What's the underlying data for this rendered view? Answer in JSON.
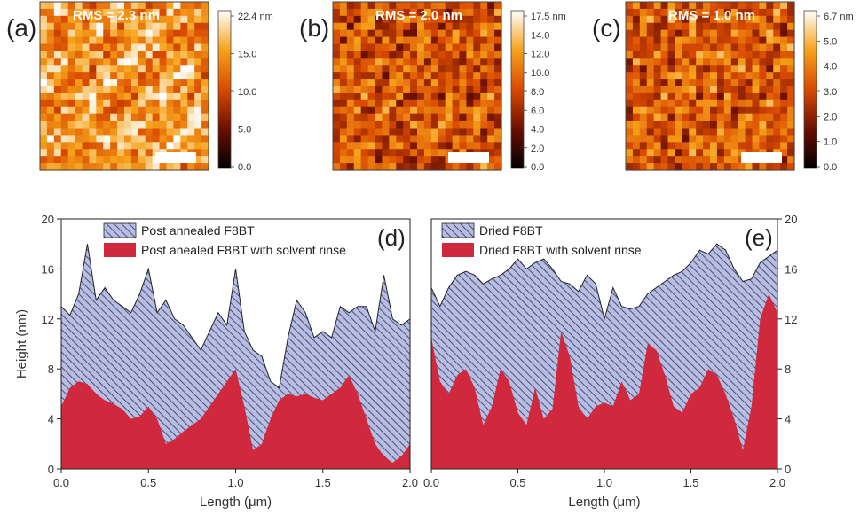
{
  "afm_panels": [
    {
      "panel_label": "(a)",
      "rms_label": "RMS = 2.3 nm",
      "colorbar_ticks": [
        "22.4 nm",
        "15.0",
        "10.0",
        "5.0",
        "0.0"
      ],
      "mean_brightness": 0.72
    },
    {
      "panel_label": "(b)",
      "rms_label": "RMS = 2.0 nm",
      "colorbar_ticks": [
        "17.5 nm",
        "14.0",
        "12.0",
        "10.0",
        "8.0",
        "6.0",
        "4.0",
        "2.0",
        "0.0"
      ],
      "mean_brightness": 0.52
    },
    {
      "panel_label": "(c)",
      "rms_label": "RMS = 1.0 nm",
      "colorbar_ticks": [
        "6.7 nm",
        "5.0",
        "4.0",
        "3.0",
        "2.0",
        "1.0",
        "0.0"
      ],
      "mean_brightness": 0.55
    }
  ],
  "colors": {
    "hatch_fill": "#b8bde2",
    "hatch_line": "#2e3362",
    "red_fill": "#d0283c",
    "outline": "#222222"
  },
  "chart_data": [
    {
      "type": "area",
      "panel_label": "(d)",
      "xlabel": "Length (μm)",
      "ylabel": "Height (nm)",
      "xlim": [
        0,
        2
      ],
      "ylim": [
        0,
        20
      ],
      "xticks": [
        "0.0",
        "0.5",
        "1.0",
        "1.5",
        "2.0"
      ],
      "yticks": [
        "0",
        "4",
        "8",
        "12",
        "16",
        "20"
      ],
      "legend_position": "top",
      "x": [
        0,
        0.05,
        0.1,
        0.15,
        0.2,
        0.25,
        0.3,
        0.35,
        0.4,
        0.45,
        0.5,
        0.55,
        0.6,
        0.65,
        0.7,
        0.75,
        0.8,
        0.85,
        0.9,
        0.95,
        1.0,
        1.05,
        1.1,
        1.15,
        1.2,
        1.25,
        1.3,
        1.35,
        1.4,
        1.45,
        1.5,
        1.55,
        1.6,
        1.65,
        1.7,
        1.75,
        1.8,
        1.85,
        1.9,
        1.95,
        2.0
      ],
      "series": [
        {
          "name": "Post annealed F8BT",
          "values": [
            13,
            12.3,
            14,
            18,
            13.5,
            14.5,
            13.5,
            13,
            12.5,
            14,
            16,
            12.5,
            13.5,
            12,
            11.5,
            10.5,
            9.5,
            11,
            12.5,
            11.5,
            16,
            11,
            9.5,
            9,
            7,
            6.5,
            10.5,
            13.5,
            12.5,
            10.5,
            11,
            10.5,
            13,
            12.5,
            13,
            13,
            11,
            15.5,
            12,
            11.5,
            12
          ]
        },
        {
          "name": "Post anealed F8BT with solvent rinse",
          "values": [
            5,
            6.5,
            7,
            6.8,
            6,
            5.5,
            5.2,
            4.8,
            4,
            4.2,
            5,
            4,
            2,
            2.4,
            3,
            3.5,
            4,
            5,
            6,
            7,
            8,
            5,
            1.5,
            2,
            4,
            5.5,
            6,
            5.8,
            6,
            5.7,
            5.5,
            6,
            6.5,
            7.5,
            6,
            4,
            2,
            1,
            0.5,
            1,
            2
          ]
        }
      ]
    },
    {
      "type": "area",
      "panel_label": "(e)",
      "xlabel": "Length (μm)",
      "ylabel": "",
      "xlim": [
        0,
        2
      ],
      "ylim": [
        0,
        20
      ],
      "xticks": [
        "0.0",
        "0.5",
        "1.0",
        "1.5",
        "2.0"
      ],
      "yticks": [
        "0",
        "4",
        "8",
        "12",
        "16",
        "20"
      ],
      "legend_position": "top",
      "x": [
        0,
        0.05,
        0.1,
        0.15,
        0.2,
        0.25,
        0.3,
        0.35,
        0.4,
        0.45,
        0.5,
        0.55,
        0.6,
        0.65,
        0.7,
        0.75,
        0.8,
        0.85,
        0.9,
        0.95,
        1.0,
        1.05,
        1.1,
        1.15,
        1.2,
        1.25,
        1.3,
        1.35,
        1.4,
        1.45,
        1.5,
        1.55,
        1.6,
        1.65,
        1.7,
        1.75,
        1.8,
        1.85,
        1.9,
        1.95,
        2.0
      ],
      "series": [
        {
          "name": "Dried F8BT",
          "values": [
            14.5,
            13,
            14.5,
            15.5,
            15.8,
            15.5,
            14.8,
            15.2,
            15.5,
            16,
            16.8,
            16,
            16.5,
            16.8,
            16,
            15,
            14.8,
            14.2,
            15.5,
            14.8,
            12,
            14.5,
            13,
            12.8,
            13,
            14,
            14.5,
            15,
            15.5,
            15.8,
            16.5,
            17.5,
            17.2,
            18,
            17.5,
            16,
            15,
            15.2,
            16.5,
            17,
            17.5
          ]
        },
        {
          "name": "Dried F8BT with solvent rinse",
          "values": [
            10.5,
            7,
            6,
            7.5,
            8,
            6.5,
            3.5,
            5,
            8,
            7,
            4.5,
            3.5,
            6.5,
            4,
            4.8,
            11,
            9,
            5,
            4,
            5,
            5.3,
            5,
            7,
            5.5,
            6,
            10,
            9.5,
            7.5,
            5,
            4.5,
            6,
            6.5,
            8,
            7.5,
            6,
            4,
            1.5,
            5,
            12,
            14,
            12.5
          ]
        }
      ]
    }
  ]
}
